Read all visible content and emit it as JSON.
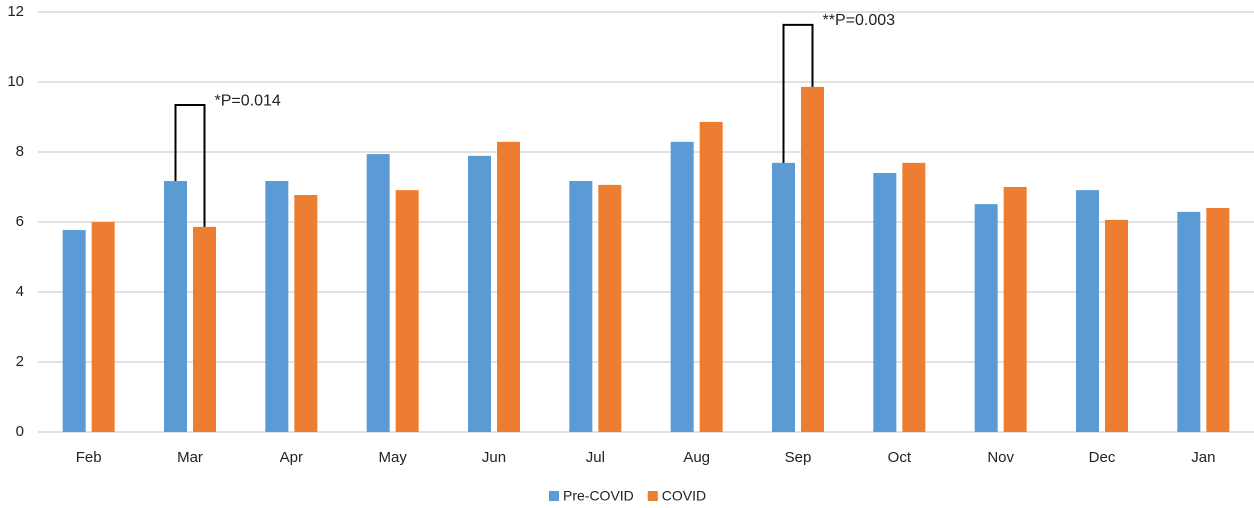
{
  "chart_data": {
    "type": "bar",
    "categories": [
      "Feb",
      "Mar",
      "Apr",
      "May",
      "Jun",
      "Jul",
      "Aug",
      "Sep",
      "Oct",
      "Nov",
      "Dec",
      "Jan"
    ],
    "series": [
      {
        "name": "Pre-COVID",
        "color": "#5b9bd5",
        "values": [
          5.77,
          7.17,
          7.17,
          7.94,
          7.89,
          7.17,
          8.29,
          7.69,
          7.4,
          6.51,
          6.91,
          6.29
        ]
      },
      {
        "name": "COVID",
        "color": "#ed7d31",
        "values": [
          6.0,
          5.86,
          6.77,
          6.91,
          8.29,
          7.06,
          8.86,
          9.86,
          7.69,
          7.0,
          6.06,
          6.4
        ]
      }
    ],
    "ylim": [
      0,
      12
    ],
    "yticks": [
      0,
      2,
      4,
      6,
      8,
      10,
      12
    ],
    "grid": true,
    "legend": "bottom",
    "annotations": [
      "*P=0.014",
      "**P=0.003"
    ]
  }
}
